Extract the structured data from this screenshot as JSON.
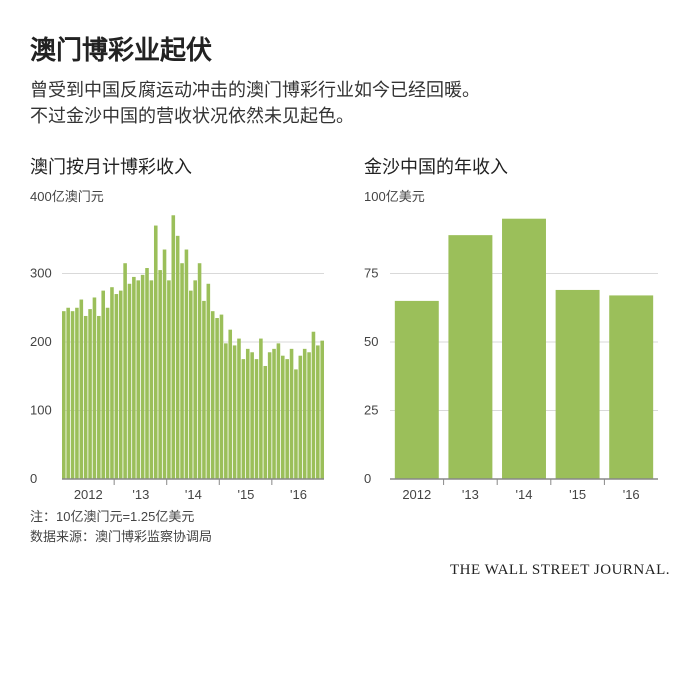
{
  "header": {
    "title": "澳门博彩业起伏",
    "subtitle_l1": "曾受到中国反腐运动冲击的澳门博彩行业如今已经回暖。",
    "subtitle_l2": "不过金沙中国的营收状况依然未见起色。"
  },
  "chart_left": {
    "type": "bar",
    "title": "澳门按月计博彩收入",
    "unit_label": "400亿澳门元",
    "yticks": [
      0,
      100,
      200,
      300
    ],
    "ymax": 400,
    "xlabels": [
      "2012",
      "'13",
      "'14",
      "'15",
      "'16"
    ],
    "bar_color": "#9bbf5a",
    "grid_color": "#d9d9d9",
    "baseline_color": "#888888",
    "text_color": "#444444",
    "label_fontsize": 14,
    "tick_fontsize": 13,
    "values": [
      245,
      250,
      245,
      250,
      262,
      238,
      248,
      265,
      238,
      275,
      250,
      280,
      270,
      275,
      315,
      285,
      295,
      290,
      298,
      308,
      290,
      370,
      305,
      335,
      290,
      385,
      355,
      315,
      335,
      275,
      290,
      315,
      260,
      285,
      245,
      235,
      240,
      198,
      218,
      195,
      205,
      175,
      190,
      185,
      175,
      205,
      165,
      185,
      190,
      198,
      180,
      175,
      190,
      160,
      180,
      190,
      185,
      215,
      195,
      202
    ]
  },
  "chart_right": {
    "type": "bar",
    "title": "金沙中国的年收入",
    "unit_label": "100亿美元",
    "yticks": [
      0,
      25,
      50,
      75
    ],
    "ymax": 100,
    "xlabels": [
      "2012",
      "'13",
      "'14",
      "'15",
      "'16"
    ],
    "bar_color": "#9bbf5a",
    "grid_color": "#d9d9d9",
    "baseline_color": "#888888",
    "text_color": "#444444",
    "label_fontsize": 14,
    "tick_fontsize": 13,
    "values": [
      65,
      89,
      95,
      69,
      67
    ]
  },
  "footnotes": {
    "line1": "注：10亿澳门元=1.25亿美元",
    "line2": "数据来源：澳门博彩监察协调局"
  },
  "branding": {
    "wsj": "THE WALL STREET JOURNAL."
  }
}
